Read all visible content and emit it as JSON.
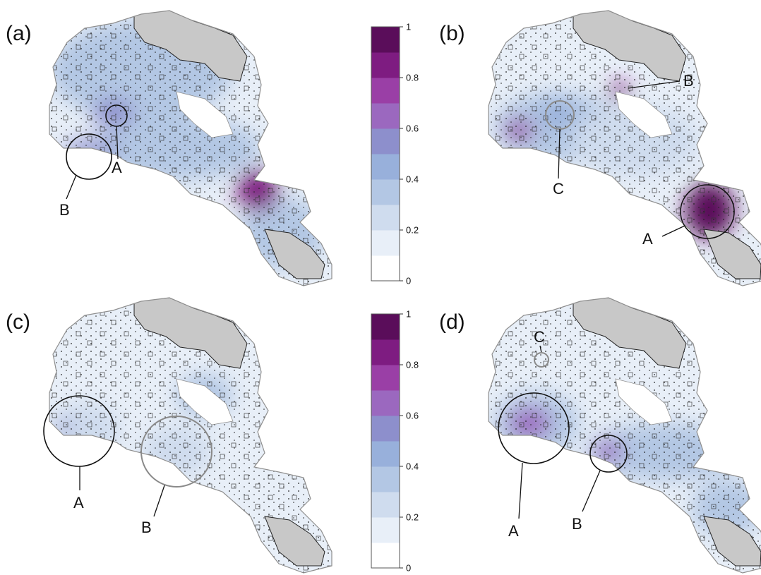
{
  "colors": {
    "outline": "#8f8f8f",
    "forest": "#c8c8c8",
    "forest_edge": "#222222",
    "lake": "#ffffff",
    "scale": [
      "#ffffff",
      "#e8eff8",
      "#cfdcee",
      "#b3c7e4",
      "#98b0db",
      "#8d8fcc",
      "#9b68bf",
      "#9a3fa6",
      "#7e1c81",
      "#5a0d5a"
    ],
    "circle_dark": "#111111",
    "circle_grey": "#8a8a8a"
  },
  "colorbars": [
    {
      "ticks": [
        "1",
        "0.8",
        "0.6",
        "0.4",
        "0.2",
        "0"
      ]
    },
    {
      "ticks": [
        "1",
        "0.8",
        "0.6",
        "0.4",
        "0.2",
        "0"
      ]
    }
  ],
  "panels": [
    {
      "label": "(a)",
      "callouts": [
        "A",
        "B"
      ]
    },
    {
      "label": "(b)",
      "callouts": [
        "B",
        "C",
        "A"
      ]
    },
    {
      "label": "(c)",
      "callouts": [
        "A",
        "B"
      ]
    },
    {
      "label": "(d)",
      "callouts": [
        "C",
        "A",
        "B"
      ]
    }
  ]
}
